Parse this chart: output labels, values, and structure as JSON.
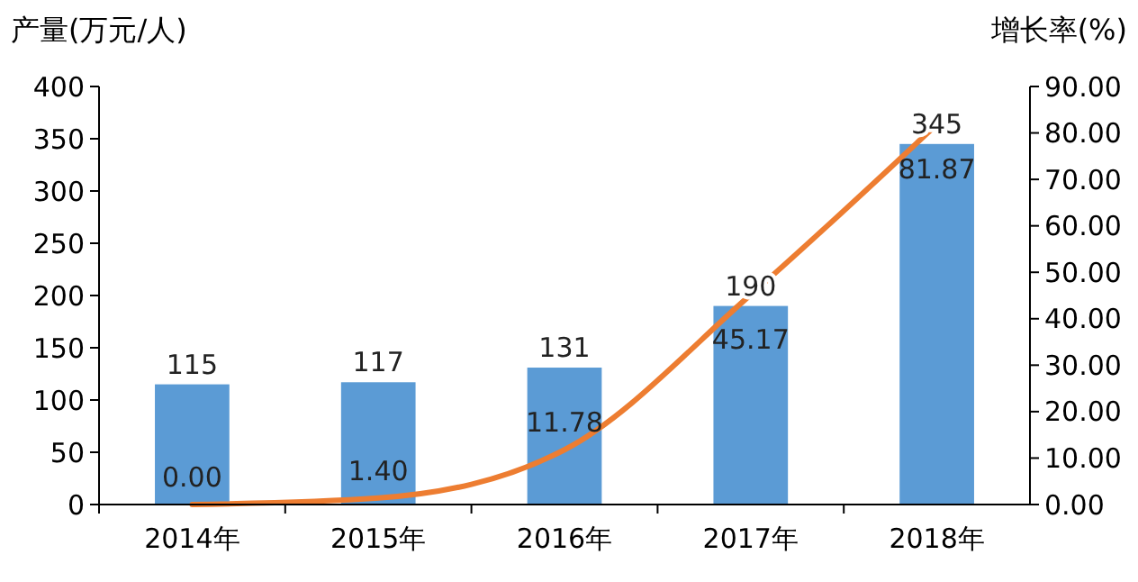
{
  "chart_data": {
    "type": "bar",
    "ylabel": "产量(万元/人)",
    "y2label": "增长率(%)",
    "categories": [
      "2014年",
      "2015年",
      "2016年",
      "2017年",
      "2018年"
    ],
    "series": [
      {
        "color": "#5b9bd5",
        "values": [
          115,
          117,
          131,
          190,
          345
        ]
      },
      {
        "type": "line",
        "axis": "y2",
        "color": "#ed7d31",
        "values": [
          0.0,
          1.4,
          11.78,
          45.17,
          81.87
        ],
        "value_labels": [
          "0.00",
          "1.40",
          "11.78",
          "45.17",
          "81.87"
        ]
      }
    ],
    "ylim": [
      0,
      400
    ],
    "yticks": [
      0,
      50,
      100,
      150,
      200,
      250,
      300,
      350,
      400
    ],
    "y2lim": [
      0,
      90
    ],
    "y2ticks": [
      {
        "value": 0,
        "label": "0.00"
      },
      {
        "value": 10,
        "label": "10.00"
      },
      {
        "value": 20,
        "label": "20.00"
      },
      {
        "value": 30,
        "label": "30.00"
      },
      {
        "value": 40,
        "label": "40.00"
      },
      {
        "value": 50,
        "label": "50.00"
      },
      {
        "value": 60,
        "label": "60.00"
      },
      {
        "value": 70,
        "label": "70.00"
      },
      {
        "value": 80,
        "label": "80.00"
      },
      {
        "value": 90,
        "label": "90.00"
      }
    ],
    "data_labels": true,
    "marker": "none",
    "line_style": "solid"
  }
}
